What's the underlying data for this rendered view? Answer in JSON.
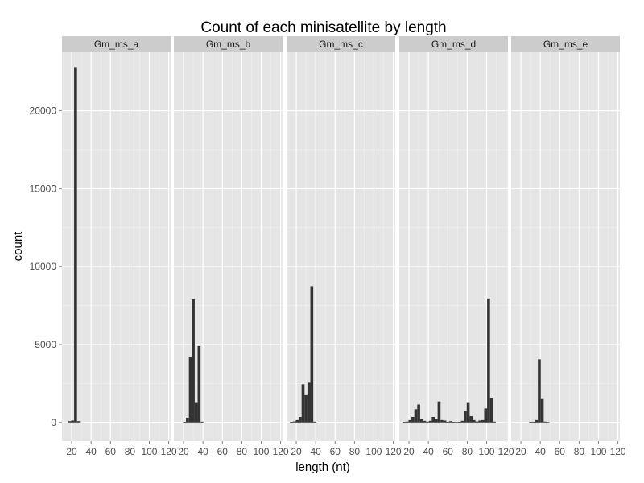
{
  "chart_data": {
    "type": "bar",
    "title": "Count of each minisatellite by length",
    "xlabel": "length (nt)",
    "ylabel": "count",
    "xlim": [
      10,
      122
    ],
    "ylim": [
      -1200,
      23800
    ],
    "x_ticks": [
      20,
      40,
      60,
      80,
      100,
      120
    ],
    "y_ticks": [
      0,
      5000,
      10000,
      15000,
      20000
    ],
    "bin_width": 3,
    "grid": true,
    "bar_color": "#333333",
    "panel_background": "#e5e5e5",
    "strip_background": "#cccccc",
    "facets": [
      {
        "name": "Gm_ms_a",
        "x": [
          18,
          21,
          24,
          27
        ],
        "values": [
          80,
          120,
          22800,
          80
        ]
      },
      {
        "name": "Gm_ms_b",
        "x": [
          21,
          24,
          27,
          30,
          33,
          36,
          39
        ],
        "values": [
          30,
          300,
          4200,
          7900,
          1300,
          4900,
          50
        ]
      },
      {
        "name": "Gm_ms_c",
        "x": [
          15,
          18,
          21,
          24,
          27,
          30,
          33,
          36,
          39
        ],
        "values": [
          30,
          60,
          150,
          350,
          2450,
          1750,
          2550,
          8750,
          50
        ]
      },
      {
        "name": "Gm_ms_d",
        "x": [
          15,
          18,
          21,
          24,
          27,
          30,
          33,
          36,
          39,
          42,
          45,
          48,
          51,
          54,
          57,
          60,
          63,
          66,
          69,
          72,
          75,
          78,
          81,
          84,
          87,
          90,
          93,
          96,
          99,
          102,
          105,
          108
        ],
        "values": [
          30,
          50,
          150,
          350,
          850,
          1150,
          200,
          100,
          50,
          100,
          350,
          200,
          1350,
          150,
          120,
          40,
          80,
          30,
          20,
          40,
          100,
          750,
          1300,
          400,
          150,
          60,
          120,
          150,
          900,
          7950,
          1550,
          50
        ]
      },
      {
        "name": "Gm_ms_e",
        "x": [
          30,
          33,
          36,
          39,
          42,
          45,
          48
        ],
        "values": [
          30,
          40,
          150,
          4050,
          1500,
          50,
          20
        ]
      }
    ]
  }
}
